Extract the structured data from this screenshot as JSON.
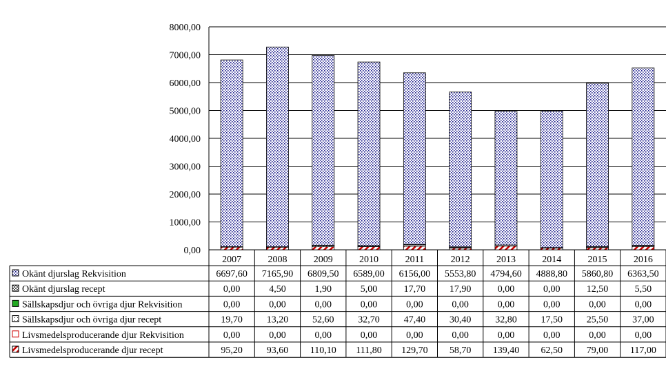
{
  "chart_data": {
    "type": "bar",
    "stacked": true,
    "title": "",
    "xlabel": "",
    "ylabel": "",
    "ylim": [
      0,
      8000
    ],
    "y_ticks": [
      "0,00",
      "1000,00",
      "2000,00",
      "3000,00",
      "4000,00",
      "5000,00",
      "6000,00",
      "7000,00",
      "8000,00"
    ],
    "grid": true,
    "legend": "table-below",
    "categories": [
      "2007",
      "2008",
      "2009",
      "2010",
      "2011",
      "2012",
      "2013",
      "2014",
      "2015",
      "2016"
    ],
    "series": [
      {
        "name": "Livsmedelsproducerande djur recept",
        "pattern": "red-diagonal-hatch",
        "color": "#cc0000",
        "values": [
          95.2,
          93.6,
          110.1,
          111.8,
          129.7,
          58.7,
          139.4,
          62.5,
          79.0,
          117.0
        ],
        "labels": [
          "95,20",
          "93,60",
          "110,10",
          "111,80",
          "129,70",
          "58,70",
          "139,40",
          "62,50",
          "79,00",
          "117,00"
        ]
      },
      {
        "name": "Livsmedelsproducerande djur Rekvisition",
        "pattern": "red-outline",
        "color": "#cc0000",
        "values": [
          0,
          0,
          0,
          0,
          0,
          0,
          0,
          0,
          0,
          0
        ],
        "labels": [
          "0,00",
          "0,00",
          "0,00",
          "0,00",
          "0,00",
          "0,00",
          "0,00",
          "0,00",
          "0,00",
          "0,00"
        ]
      },
      {
        "name": "Sällskapsdjur och övriga djur recept",
        "pattern": "small-dots",
        "color": "#333333",
        "values": [
          19.7,
          13.2,
          52.6,
          32.7,
          47.4,
          30.4,
          32.8,
          17.5,
          25.5,
          37.0
        ],
        "labels": [
          "19,70",
          "13,20",
          "52,60",
          "32,70",
          "47,40",
          "30,40",
          "32,80",
          "17,50",
          "25,50",
          "37,00"
        ]
      },
      {
        "name": "Sällskapsdjur och övriga djur Rekvisition",
        "pattern": "solid-green",
        "color": "#22aa22",
        "values": [
          0,
          0,
          0,
          0,
          0,
          0,
          0,
          0,
          0,
          0
        ],
        "labels": [
          "0,00",
          "0,00",
          "0,00",
          "0,00",
          "0,00",
          "0,00",
          "0,00",
          "0,00",
          "0,00",
          "0,00"
        ]
      },
      {
        "name": "Okänt djurslag recept",
        "pattern": "grey-checker",
        "color": "#555555",
        "values": [
          0,
          4.5,
          1.9,
          5.0,
          17.7,
          17.9,
          0,
          0,
          12.5,
          5.5
        ],
        "labels": [
          "0,00",
          "4,50",
          "1,90",
          "5,00",
          "17,70",
          "17,90",
          "0,00",
          "0,00",
          "12,50",
          "5,50"
        ]
      },
      {
        "name": "Okänt djurslag Rekvisition",
        "pattern": "blue-dots",
        "color": "#1a1a8c",
        "values": [
          6697.6,
          7165.9,
          6809.5,
          6589.0,
          6156.0,
          5553.8,
          4794.6,
          4888.8,
          5860.8,
          6363.5
        ],
        "labels": [
          "6697,60",
          "7165,90",
          "6809,50",
          "6589,00",
          "6156,00",
          "5553,80",
          "4794,60",
          "4888,80",
          "5860,80",
          "6363,50"
        ]
      }
    ],
    "table_row_order": [
      "Okänt djurslag Rekvisition",
      "Okänt djurslag recept",
      "Sällskapsdjur och övriga djur Rekvisition",
      "Sällskapsdjur och övriga djur recept",
      "Livsmedelsproducerande djur Rekvisition",
      "Livsmedelsproducerande djur recept"
    ]
  }
}
